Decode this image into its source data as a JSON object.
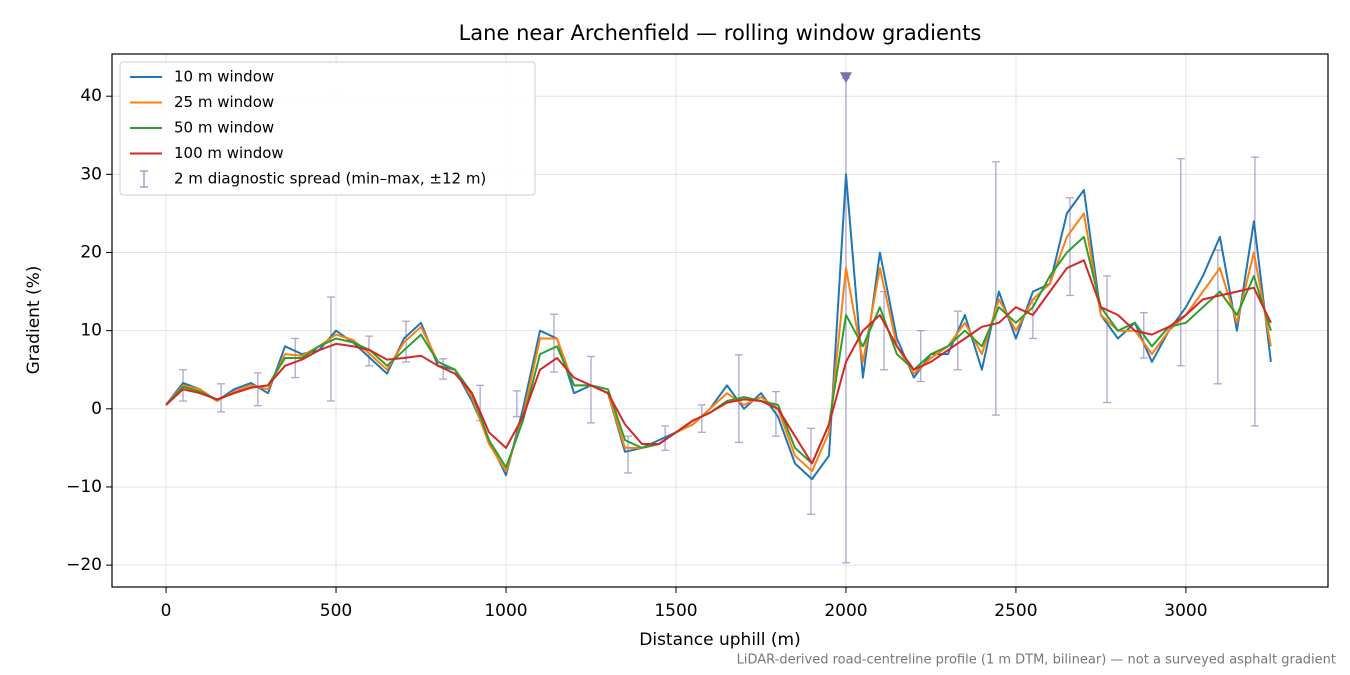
{
  "chart_data": {
    "type": "line",
    "title": "Lane near Archenfield — rolling window gradients",
    "xlabel": "Distance uphill (m)",
    "ylabel": "Gradient (%)",
    "caption": "LiDAR-derived road-centreline profile (1 m DTM, bilinear) — not a surveyed asphalt gradient",
    "xlim": [
      -159,
      3418
    ],
    "ylim": [
      -22.8,
      45.4
    ],
    "xticks": [
      0,
      500,
      1000,
      1500,
      2000,
      2500,
      3000
    ],
    "yticks": [
      {
        "value": -20,
        "label": "−20"
      },
      {
        "value": -10,
        "label": "−10"
      },
      0,
      10,
      20,
      30,
      40
    ],
    "grid": true,
    "legend": "upper left",
    "x": [
      0,
      50,
      100,
      150,
      200,
      250,
      300,
      350,
      400,
      450,
      500,
      550,
      600,
      650,
      700,
      750,
      800,
      850,
      900,
      950,
      1000,
      1050,
      1100,
      1150,
      1200,
      1250,
      1300,
      1350,
      1400,
      1450,
      1500,
      1550,
      1600,
      1650,
      1700,
      1750,
      1800,
      1850,
      1900,
      1950,
      2000,
      2050,
      2100,
      2150,
      2200,
      2250,
      2300,
      2350,
      2400,
      2450,
      2500,
      2550,
      2600,
      2650,
      2700,
      2750,
      2800,
      2850,
      2900,
      2950,
      3000,
      3050,
      3100,
      3150,
      3200,
      3250
    ],
    "series": [
      {
        "name": "10 m window",
        "color": "#1f77b4",
        "values": [
          0.5,
          3.3,
          2.5,
          1,
          2.5,
          3.3,
          2,
          8,
          7,
          7.5,
          10,
          8.5,
          6.5,
          4.5,
          9,
          11,
          5.5,
          5,
          1,
          -4,
          -8.5,
          0,
          10,
          9,
          2,
          3,
          2,
          -5.5,
          -5,
          -4,
          -3,
          -2,
          0,
          3,
          0,
          2,
          -1,
          -7,
          -9,
          -6,
          30,
          4,
          20,
          9,
          4,
          7,
          7,
          12,
          5,
          15,
          9,
          15,
          16,
          25,
          28,
          12,
          9,
          11,
          6,
          10,
          13,
          17,
          22,
          10,
          24,
          6
        ]
      },
      {
        "name": "25 m window",
        "color": "#ff7f0e",
        "values": [
          0.5,
          3,
          2.5,
          1,
          2.2,
          3,
          2.5,
          7,
          6.8,
          8,
          9.5,
          8.8,
          7,
          5,
          8.5,
          10.5,
          6,
          5,
          1.5,
          -4.5,
          -8,
          -1,
          9,
          9,
          3,
          3,
          2,
          -5,
          -5,
          -4.5,
          -3,
          -2,
          0,
          2,
          0.5,
          1.5,
          0,
          -6,
          -8,
          -3,
          18,
          6,
          18,
          8,
          4.5,
          6.5,
          8,
          11,
          7,
          14,
          10,
          14,
          16,
          22,
          25,
          12,
          10,
          10,
          7,
          10,
          12,
          15,
          18,
          11,
          20,
          8
        ]
      },
      {
        "name": "50 m window",
        "color": "#2ca02c",
        "values": [
          0.5,
          2.8,
          2.2,
          1.2,
          2,
          2.7,
          3,
          6.5,
          6.5,
          8,
          9,
          8.5,
          7.5,
          5.5,
          7.5,
          9.5,
          6,
          5,
          2,
          -4,
          -7.5,
          -1.5,
          7,
          8,
          3,
          3,
          2.5,
          -4,
          -5,
          -4.5,
          -3,
          -1.5,
          -0.5,
          1,
          1.5,
          1,
          0.5,
          -5,
          -7,
          -2,
          12,
          8,
          13,
          7,
          5,
          7,
          8,
          10,
          8,
          13,
          11,
          13,
          17,
          20,
          22,
          13,
          10,
          11,
          8,
          10.5,
          11,
          13,
          15,
          12,
          17,
          10
        ]
      },
      {
        "name": "100 m window",
        "color": "#d62728",
        "values": [
          0.5,
          2.5,
          2,
          1.2,
          2,
          2.7,
          3,
          5.5,
          6.3,
          7.5,
          8.3,
          8,
          7.5,
          6.3,
          6.5,
          6.8,
          5.5,
          4.5,
          2,
          -3,
          -5,
          -1,
          5,
          6.5,
          4,
          3,
          2,
          -2,
          -4.5,
          -4.5,
          -3,
          -1.5,
          -0.5,
          0.8,
          1.2,
          1,
          0,
          -3.5,
          -7,
          -2,
          6,
          10,
          12,
          8,
          5,
          6,
          7.5,
          9,
          10.5,
          11,
          13,
          12,
          15,
          18,
          19,
          13,
          12,
          10,
          9.5,
          10.5,
          12,
          14,
          14.5,
          15,
          15.5,
          11
        ]
      }
    ],
    "error_bars": {
      "name": "2 m diagnostic spread (min–max, ±12 m)",
      "color": "#9b8fc4",
      "x": [
        50,
        162,
        270,
        380,
        485,
        597,
        706,
        815,
        924,
        1032,
        1141,
        1250,
        1359,
        1468,
        1576,
        1685,
        1794,
        1897,
        2000,
        2112,
        2220,
        2329,
        2441,
        2550,
        2659,
        2768,
        2876,
        2985,
        3094,
        3203
      ],
      "low": [
        1,
        -0.4,
        0.4,
        4,
        1,
        5.5,
        6,
        3.8,
        -1.5,
        -1,
        4.7,
        -1.8,
        -8.2,
        -5.3,
        -3,
        -4.3,
        -3.5,
        -13.5,
        -19.7,
        5,
        3.5,
        5,
        -0.8,
        9,
        14.5,
        0.8,
        6.5,
        5.5,
        3.2,
        -2.2
      ],
      "high": [
        5,
        3.2,
        4.6,
        9,
        14.3,
        9.3,
        11.2,
        6.4,
        3,
        2.3,
        12.1,
        6.7,
        -3.5,
        -2.2,
        0.5,
        6.9,
        2.2,
        -2.5,
        42.3,
        15,
        10,
        12.5,
        31.6,
        14,
        27,
        17,
        12.3,
        32,
        20.3,
        32.2
      ]
    },
    "clip_marker": {
      "x": 2000,
      "y": 42.3,
      "color": "#7f6fae"
    }
  }
}
